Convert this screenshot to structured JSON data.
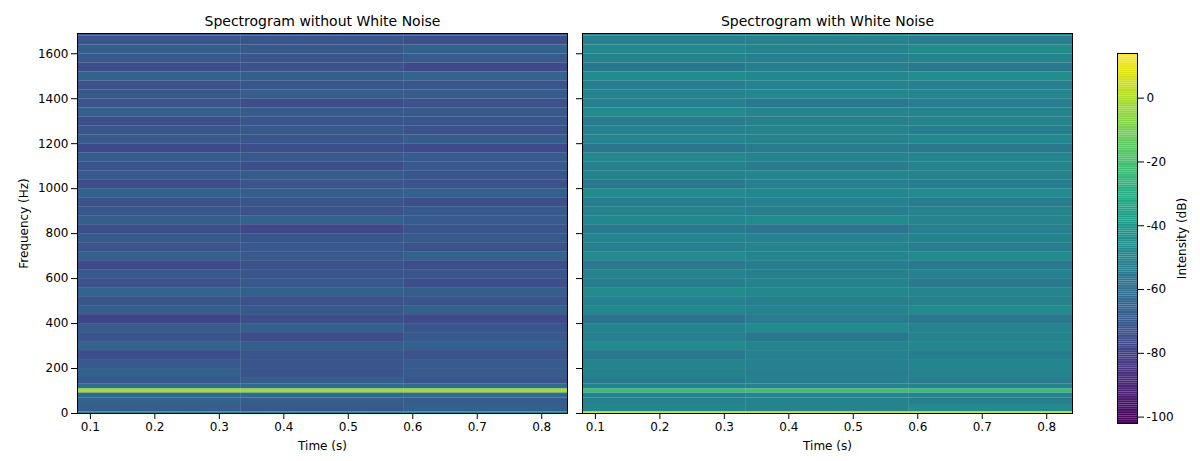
{
  "chart_data": {
    "type": "heatmap",
    "xlabel": "Time (s)",
    "ylabel": "Frequency (Hz)",
    "xlim": [
      0.08,
      0.84
    ],
    "xticks": [
      0.1,
      0.2,
      0.3,
      0.4,
      0.5,
      0.6,
      0.7,
      0.8
    ],
    "ylim": [
      0,
      1690
    ],
    "yticks": [
      0,
      200,
      400,
      600,
      800,
      1000,
      1200,
      1400,
      1600
    ],
    "color": "viridis",
    "time_edges": [
      0.08,
      0.333,
      0.587,
      0.84
    ],
    "frequency_edges": [
      0,
      8,
      40,
      70,
      92,
      110,
      130,
      160,
      200,
      240,
      280,
      320,
      360,
      400,
      440,
      480,
      520,
      560,
      600,
      640,
      680,
      720,
      760,
      800,
      840,
      880,
      920,
      960,
      1000,
      1040,
      1080,
      1120,
      1160,
      1200,
      1240,
      1280,
      1320,
      1360,
      1400,
      1440,
      1480,
      1520,
      1560,
      1600,
      1640,
      1680,
      1690
    ],
    "colorbar": {
      "label": "Intensity (dB)",
      "range": [
        -102,
        14
      ],
      "ticks": [
        0,
        -20,
        -40,
        -60,
        -80,
        -100
      ]
    },
    "panels": [
      {
        "title": "Spectrogram without White Noise",
        "intensity": [
          [
            -45,
            -46,
            -45
          ],
          [
            -68,
            -70,
            -67
          ],
          [
            -66,
            -68,
            -69
          ],
          [
            -62,
            -63,
            -62
          ],
          [
            -2,
            -3,
            -2
          ],
          [
            -60,
            -62,
            -61
          ],
          [
            -70,
            -68,
            -71
          ],
          [
            -67,
            -72,
            -69
          ],
          [
            -70,
            -72,
            -69
          ],
          [
            -74,
            -71,
            -73
          ],
          [
            -66,
            -68,
            -67
          ],
          [
            -72,
            -75,
            -70
          ],
          [
            -69,
            -67,
            -71
          ],
          [
            -78,
            -74,
            -76
          ],
          [
            -68,
            -70,
            -66
          ],
          [
            -71,
            -73,
            -72
          ],
          [
            -65,
            -67,
            -68
          ],
          [
            -73,
            -70,
            -74
          ],
          [
            -70,
            -72,
            -71
          ],
          [
            -76,
            -73,
            -75
          ],
          [
            -67,
            -69,
            -66
          ],
          [
            -72,
            -70,
            -73
          ],
          [
            -69,
            -71,
            -70
          ],
          [
            -74,
            -77,
            -72
          ],
          [
            -68,
            -66,
            -69
          ],
          [
            -71,
            -73,
            -70
          ],
          [
            -73,
            -71,
            -74
          ],
          [
            -66,
            -68,
            -67
          ],
          [
            -75,
            -72,
            -73
          ],
          [
            -70,
            -69,
            -71
          ],
          [
            -72,
            -74,
            -70
          ],
          [
            -68,
            -70,
            -69
          ],
          [
            -77,
            -74,
            -76
          ],
          [
            -69,
            -71,
            -68
          ],
          [
            -71,
            -70,
            -73
          ],
          [
            -74,
            -72,
            -71
          ],
          [
            -67,
            -69,
            -70
          ],
          [
            -72,
            -75,
            -73
          ],
          [
            -70,
            -68,
            -69
          ],
          [
            -73,
            -71,
            -72
          ],
          [
            -66,
            -68,
            -65
          ],
          [
            -75,
            -73,
            -76
          ],
          [
            -70,
            -72,
            -69
          ],
          [
            -68,
            -70,
            -66
          ],
          [
            -72,
            -71,
            -74
          ],
          [
            -69,
            -70,
            -68
          ]
        ]
      },
      {
        "title": "Spectrogram with White Noise",
        "tick_labels": "x",
        "intensity": [
          [
            6,
            6,
            5
          ],
          [
            -48,
            -50,
            -47
          ],
          [
            -52,
            -50,
            -53
          ],
          [
            -50,
            -49,
            -51
          ],
          [
            -22,
            -21,
            -23
          ],
          [
            -49,
            -51,
            -50
          ],
          [
            -55,
            -52,
            -54
          ],
          [
            -50,
            -53,
            -51
          ],
          [
            -50,
            -52,
            -49
          ],
          [
            -55,
            -51,
            -53
          ],
          [
            -47,
            -49,
            -48
          ],
          [
            -52,
            -55,
            -50
          ],
          [
            -49,
            -47,
            -51
          ],
          [
            -58,
            -54,
            -56
          ],
          [
            -48,
            -50,
            -46
          ],
          [
            -51,
            -53,
            -52
          ],
          [
            -46,
            -48,
            -49
          ],
          [
            -53,
            -50,
            -54
          ],
          [
            -50,
            -52,
            -51
          ],
          [
            -56,
            -53,
            -55
          ],
          [
            -47,
            -49,
            -46
          ],
          [
            -52,
            -50,
            -53
          ],
          [
            -49,
            -51,
            -50
          ],
          [
            -54,
            -57,
            -52
          ],
          [
            -48,
            -46,
            -49
          ],
          [
            -51,
            -53,
            -50
          ],
          [
            -53,
            -51,
            -54
          ],
          [
            -46,
            -48,
            -47
          ],
          [
            -55,
            -52,
            -53
          ],
          [
            -50,
            -49,
            -51
          ],
          [
            -52,
            -54,
            -50
          ],
          [
            -48,
            -50,
            -49
          ],
          [
            -57,
            -54,
            -56
          ],
          [
            -49,
            -51,
            -48
          ],
          [
            -51,
            -50,
            -53
          ],
          [
            -54,
            -52,
            -51
          ],
          [
            -47,
            -49,
            -50
          ],
          [
            -52,
            -55,
            -53
          ],
          [
            -50,
            -48,
            -49
          ],
          [
            -53,
            -51,
            -52
          ],
          [
            -46,
            -48,
            -45
          ],
          [
            -55,
            -53,
            -56
          ],
          [
            -50,
            -52,
            -49
          ],
          [
            -48,
            -50,
            -46
          ],
          [
            -52,
            -51,
            -54
          ],
          [
            -49,
            -50,
            -48
          ]
        ]
      }
    ]
  }
}
